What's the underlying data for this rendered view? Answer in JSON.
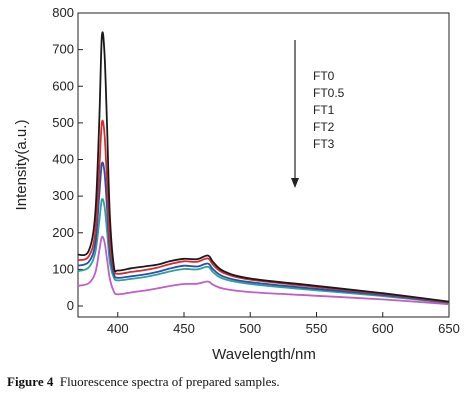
{
  "chart_data": {
    "type": "line",
    "xlabel": "Wavelength/nm",
    "ylabel": "Intensity(a.u.)",
    "xlim": [
      370,
      650
    ],
    "ylim": [
      -30,
      800
    ],
    "xticks": [
      400,
      450,
      500,
      550,
      600,
      650
    ],
    "yticks": [
      0,
      100,
      200,
      300,
      400,
      500,
      600,
      700,
      800
    ],
    "grid": false,
    "legend_position": "top-right",
    "annotation": "downward arrow indicating decreasing intensity from FT0 to FT3",
    "series": [
      {
        "name": "FT0",
        "color": "#1a1a1a",
        "x": [
          370,
          378,
          383,
          386,
          388,
          390,
          392,
          394,
          397,
          400,
          410,
          420,
          430,
          440,
          450,
          460,
          468,
          472,
          480,
          500,
          550,
          600,
          650
        ],
        "y": [
          140,
          150,
          250,
          500,
          735,
          690,
          480,
          250,
          110,
          97,
          103,
          108,
          113,
          123,
          129,
          128,
          138,
          120,
          95,
          75,
          55,
          35,
          12
        ]
      },
      {
        "name": "FT0.5",
        "color": "#d92b2b",
        "x": [
          370,
          378,
          383,
          386,
          388,
          390,
          392,
          394,
          397,
          400,
          410,
          420,
          430,
          440,
          450,
          460,
          468,
          472,
          480,
          500,
          550,
          600,
          650
        ],
        "y": [
          125,
          135,
          200,
          370,
          500,
          470,
          330,
          180,
          100,
          88,
          93,
          98,
          105,
          115,
          122,
          121,
          130,
          112,
          90,
          72,
          52,
          33,
          10
        ]
      },
      {
        "name": "FT1",
        "color": "#2a4fa8",
        "x": [
          370,
          378,
          383,
          386,
          388,
          390,
          392,
          394,
          397,
          400,
          410,
          420,
          430,
          440,
          450,
          460,
          468,
          472,
          480,
          500,
          550,
          600,
          650
        ],
        "y": [
          110,
          120,
          170,
          300,
          388,
          365,
          260,
          150,
          88,
          77,
          81,
          86,
          93,
          103,
          110,
          108,
          116,
          100,
          80,
          65,
          47,
          30,
          9
        ]
      },
      {
        "name": "FT2",
        "color": "#2aa1a1",
        "x": [
          370,
          378,
          383,
          386,
          388,
          390,
          392,
          394,
          397,
          400,
          410,
          420,
          430,
          440,
          450,
          460,
          468,
          472,
          480,
          500,
          550,
          600,
          650
        ],
        "y": [
          95,
          105,
          145,
          230,
          290,
          272,
          200,
          120,
          78,
          70,
          74,
          79,
          86,
          95,
          101,
          100,
          107,
          92,
          74,
          60,
          43,
          27,
          8
        ]
      },
      {
        "name": "FT3",
        "color": "#c25cc6",
        "x": [
          370,
          378,
          383,
          386,
          388,
          390,
          392,
          394,
          397,
          400,
          410,
          420,
          430,
          440,
          450,
          460,
          468,
          472,
          480,
          500,
          550,
          600,
          650
        ],
        "y": [
          55,
          62,
          90,
          150,
          188,
          175,
          125,
          75,
          40,
          32,
          37,
          42,
          48,
          55,
          60,
          61,
          67,
          58,
          47,
          38,
          28,
          18,
          5
        ]
      }
    ]
  },
  "caption": {
    "label": "Figure 4",
    "text": "Fluorescence spectra of prepared samples."
  }
}
